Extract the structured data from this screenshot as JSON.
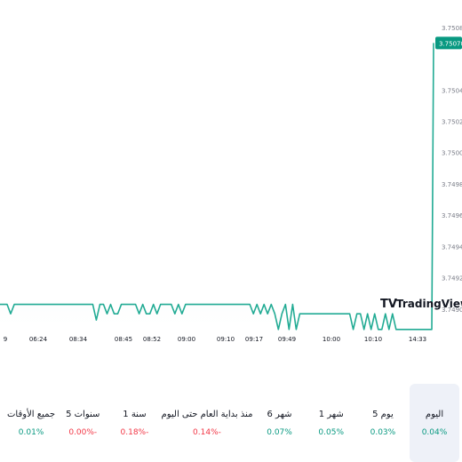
{
  "chart_data": {
    "type": "line",
    "x_tick_labels": [
      "9",
      "06:24",
      "08:34",
      "08:45",
      "08:52",
      "09:00",
      "09:10",
      "09:17",
      "09:49",
      "10:00",
      "10:10",
      "14:33"
    ],
    "y_ticks": [
      "3.750800",
      "3.750400",
      "3.750200",
      "3.750000",
      "3.749800",
      "3.749600",
      "3.749400",
      "3.749200",
      "3.749000"
    ],
    "ylim": [
      3.74892,
      3.75085
    ],
    "current_price": "3.750700",
    "series": [
      {
        "values": [
          3.74903,
          3.74903,
          3.74903,
          3.74897,
          3.74903,
          3.74903,
          3.74903,
          3.74903,
          3.74903,
          3.74903,
          3.74903,
          3.74903,
          3.74903,
          3.74903,
          3.74903,
          3.74903,
          3.74903,
          3.74903,
          3.74903,
          3.74903,
          3.74903,
          3.74903,
          3.74903,
          3.74903,
          3.74903,
          3.74903,
          3.74903,
          3.74893,
          3.74903,
          3.74903,
          3.74897,
          3.74903,
          3.74897,
          3.74897,
          3.74903,
          3.74903,
          3.74903,
          3.74903,
          3.74903,
          3.74897,
          3.74903,
          3.74897,
          3.74897,
          3.74903,
          3.74897,
          3.74903,
          3.74903,
          3.74903,
          3.74903,
          3.74897,
          3.74903,
          3.74897,
          3.74903,
          3.74903,
          3.74903,
          3.74903,
          3.74903,
          3.74903,
          3.74903,
          3.74903,
          3.74903,
          3.74903,
          3.74903,
          3.74903,
          3.74903,
          3.74903,
          3.74903,
          3.74903,
          3.74903,
          3.74903,
          3.74903,
          3.74897,
          3.74903,
          3.74897,
          3.74903,
          3.74897,
          3.74903,
          3.74897,
          3.74887,
          3.74897,
          3.74903,
          3.74887,
          3.74903,
          3.74887,
          3.74897,
          3.74897,
          3.74897,
          3.74897,
          3.74897,
          3.74897,
          3.74897,
          3.74897,
          3.74897,
          3.74897,
          3.74897,
          3.74897,
          3.74897,
          3.74897,
          3.74897,
          3.74887,
          3.74897,
          3.74897,
          3.74887,
          3.74897,
          3.74887,
          3.74897,
          3.74887,
          3.74887,
          3.74897,
          3.74887,
          3.74897,
          3.74887,
          3.74887,
          3.74887,
          3.74887,
          3.74887,
          3.74887,
          3.74887,
          3.74887,
          3.74887,
          3.74887,
          3.74887,
          3.7507
        ]
      }
    ]
  },
  "watermark": {
    "brand": "TradingView",
    "logo_text": "TV"
  },
  "colors": {
    "line": "#22ab94",
    "price_tag": "#089981",
    "up": "#089981",
    "down": "#f23645",
    "active_bg": "#eef1f8"
  },
  "periods": [
    {
      "label": "اليوم",
      "change": "0.04%",
      "direction": "up",
      "active": true
    },
    {
      "label": "5 يوم",
      "change": "0.03%",
      "direction": "up",
      "active": false
    },
    {
      "label": "1 شهر",
      "change": "0.05%",
      "direction": "up",
      "active": false
    },
    {
      "label": "6 شهر",
      "change": "0.07%",
      "direction": "up",
      "active": false
    },
    {
      "label": "منذ بداية العام حتى اليوم",
      "change": "0.14%-",
      "direction": "down",
      "active": false
    },
    {
      "label": "1 سنة",
      "change": "0.18%-",
      "direction": "down",
      "active": false
    },
    {
      "label": "5 سنوات",
      "change": "0.00%-",
      "direction": "down",
      "active": false
    },
    {
      "label": "جميع الأوقات",
      "change": "0.01%",
      "direction": "up",
      "active": false
    }
  ]
}
